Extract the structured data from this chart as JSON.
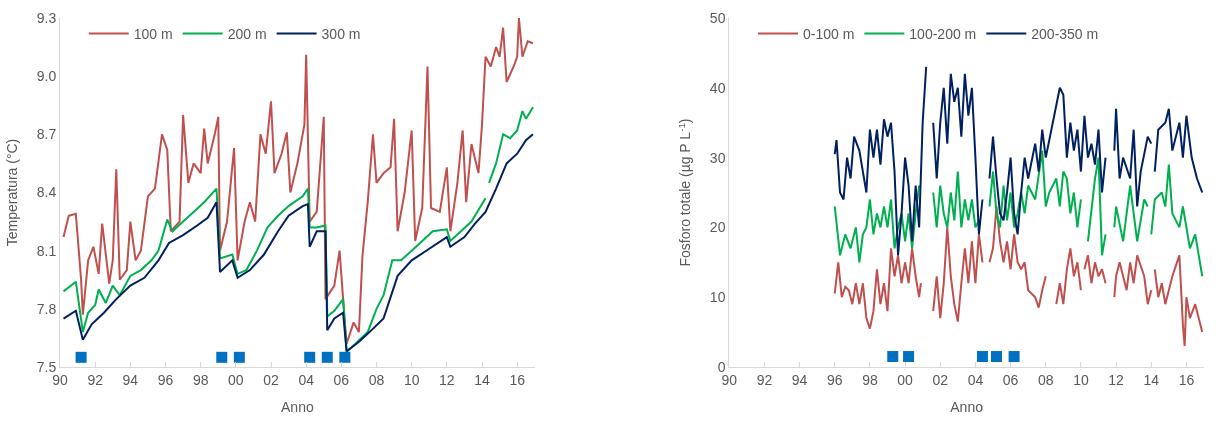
{
  "chart_data": [
    {
      "type": "line",
      "xlabel": "Anno",
      "ylabel": "Temperatura (°C)",
      "xlim": [
        1990,
        2017
      ],
      "ylim": [
        7.5,
        9.3
      ],
      "xticks": [
        {
          "value": 1990,
          "label": "90"
        },
        {
          "value": 1992,
          "label": "92"
        },
        {
          "value": 1994,
          "label": "94"
        },
        {
          "value": 1996,
          "label": "96"
        },
        {
          "value": 1998,
          "label": "98"
        },
        {
          "value": 2000,
          "label": "00"
        },
        {
          "value": 2002,
          "label": "02"
        },
        {
          "value": 2004,
          "label": "04"
        },
        {
          "value": 2006,
          "label": "06"
        },
        {
          "value": 2008,
          "label": "08"
        },
        {
          "value": 2010,
          "label": "10"
        },
        {
          "value": 2012,
          "label": "12"
        },
        {
          "value": 2014,
          "label": "14"
        },
        {
          "value": 2016,
          "label": "16"
        }
      ],
      "yticks": [
        7.5,
        7.8,
        8.1,
        8.4,
        8.7,
        {
          "value": 9.0,
          "label": "9.0"
        },
        9.3
      ],
      "legend": "top left",
      "marker": "none",
      "line_style": "solid",
      "series": [
        {
          "name": "100 m",
          "color": "#c0504d",
          "x": [
            1990.2,
            1990.5,
            1990.9,
            1991.2,
            1991.3,
            1991.6,
            1991.9,
            1992.2,
            1992.4,
            1992.8,
            1993.0,
            1993.2,
            1993.4,
            1993.8,
            1994.0,
            1994.3,
            1994.6,
            1995.0,
            1995.4,
            1995.8,
            1996.1,
            1996.3,
            1996.8,
            1997.0,
            1997.3,
            1997.6,
            1998.0,
            1998.2,
            1998.4,
            1998.8,
            1999.0,
            1999.1,
            1999.5,
            1999.9,
            2000.1,
            2000.5,
            2000.8,
            2001.1,
            2001.4,
            2001.7,
            2002.0,
            2002.2,
            2002.6,
            2002.9,
            2003.1,
            2003.5,
            2003.9,
            2004.0,
            2004.2,
            2004.6,
            2005.0,
            2005.1,
            2005.6,
            2005.9,
            2006.1,
            2006.3,
            2006.7,
            2007.0,
            2007.2,
            2007.5,
            2007.8,
            2008.0,
            2008.4,
            2008.8,
            2009.0,
            2009.2,
            2009.6,
            2010.0,
            2010.2,
            2010.6,
            2010.9,
            2011.1,
            2011.6,
            2012.0,
            2012.2,
            2012.6,
            2012.9,
            2013.1,
            2013.4,
            2013.8,
            2014.0,
            2014.2,
            2014.5,
            2014.8,
            2015.0,
            2015.2,
            2015.4,
            2015.8,
            2016.0,
            2016.1,
            2016.3,
            2016.6,
            2016.9
          ],
          "values": [
            8.17,
            8.28,
            8.29,
            7.95,
            7.77,
            8.05,
            8.12,
            7.98,
            8.24,
            7.93,
            8.05,
            8.52,
            7.95,
            8.0,
            8.25,
            8.05,
            8.1,
            8.38,
            8.42,
            8.7,
            8.62,
            8.2,
            8.25,
            8.8,
            8.45,
            8.55,
            8.5,
            8.73,
            8.55,
            8.7,
            8.79,
            8.1,
            8.25,
            8.63,
            8.05,
            8.25,
            8.35,
            8.25,
            8.7,
            8.6,
            8.87,
            8.5,
            8.6,
            8.71,
            8.4,
            8.55,
            8.75,
            9.11,
            8.25,
            8.3,
            8.79,
            7.85,
            7.92,
            8.1,
            7.85,
            7.62,
            7.73,
            7.68,
            8.07,
            8.35,
            8.7,
            8.45,
            8.5,
            8.53,
            8.78,
            8.2,
            8.4,
            8.72,
            8.15,
            8.32,
            9.05,
            8.32,
            8.3,
            8.53,
            8.2,
            8.45,
            8.72,
            8.35,
            8.65,
            8.5,
            8.75,
            9.1,
            9.05,
            9.15,
            9.1,
            9.25,
            8.97,
            9.05,
            9.1,
            9.3,
            9.1,
            9.18,
            9.17
          ]
        },
        {
          "name": "200 m",
          "color": "#00b050",
          "x": [
            1990.2,
            1990.9,
            1991.3,
            1991.6,
            1992.0,
            1992.2,
            1992.6,
            1993.0,
            1993.4,
            1994.0,
            1994.6,
            1995.2,
            1995.6,
            1996.1,
            1996.4,
            1997.0,
            1997.6,
            1998.2,
            1998.9,
            1999.1,
            1999.8,
            2000.1,
            2000.6,
            2001.2,
            2001.8,
            2002.4,
            2003.0,
            2003.8,
            2004.1,
            2004.2,
            2004.6,
            2005.1,
            2005.2,
            2005.6,
            2006.1,
            2006.3,
            2006.8,
            2007.5,
            2008.0,
            2008.4,
            2008.9,
            2009.4,
            2010.0,
            2010.6,
            2011.2,
            2012.0,
            2012.2,
            2012.8,
            2013.4,
            2014.2,
            2014.3,
            2014.4,
            2014.8,
            2015.2,
            2015.6,
            2016.0,
            2016.3,
            2016.5,
            2016.9
          ],
          "values": [
            7.89,
            7.94,
            7.68,
            7.78,
            7.82,
            7.9,
            7.83,
            7.92,
            7.87,
            7.97,
            8.0,
            8.05,
            8.1,
            8.26,
            8.2,
            8.25,
            8.3,
            8.35,
            8.42,
            8.06,
            8.08,
            7.98,
            8.0,
            8.1,
            8.22,
            8.28,
            8.33,
            8.38,
            8.42,
            8.22,
            8.22,
            8.23,
            7.76,
            7.79,
            7.85,
            7.58,
            7.62,
            7.68,
            7.8,
            7.87,
            8.05,
            8.05,
            8.1,
            8.15,
            8.2,
            8.21,
            8.15,
            8.2,
            8.25,
            8.37,
            null,
            8.45,
            8.55,
            8.7,
            8.68,
            8.72,
            8.82,
            8.78,
            8.84
          ]
        },
        {
          "name": "300 m",
          "color": "#002060",
          "x": [
            1990.2,
            1990.9,
            1991.3,
            1991.8,
            1992.5,
            1993.2,
            1994.0,
            1994.8,
            1995.6,
            1996.2,
            1997.0,
            1997.8,
            1998.4,
            1998.9,
            1999.1,
            1999.8,
            2000.1,
            2000.8,
            2001.6,
            2002.4,
            2003.0,
            2003.8,
            2004.1,
            2004.2,
            2004.6,
            2005.1,
            2005.2,
            2005.6,
            2006.1,
            2006.3,
            2007.0,
            2007.6,
            2008.4,
            2009.2,
            2010.0,
            2011.0,
            2012.0,
            2012.2,
            2013.0,
            2013.6,
            2014.2,
            2014.8,
            2015.4,
            2016.0,
            2016.5,
            2016.9
          ],
          "values": [
            7.75,
            7.79,
            7.64,
            7.72,
            7.78,
            7.85,
            7.92,
            7.96,
            8.05,
            8.14,
            8.18,
            8.23,
            8.27,
            8.35,
            7.99,
            8.05,
            7.96,
            8.0,
            8.08,
            8.2,
            8.28,
            8.33,
            8.34,
            8.12,
            8.2,
            8.2,
            7.69,
            7.75,
            7.78,
            7.58,
            7.63,
            7.68,
            7.75,
            7.97,
            8.05,
            8.11,
            8.17,
            8.12,
            8.17,
            8.24,
            8.3,
            8.42,
            8.55,
            8.6,
            8.67,
            8.7
          ]
        },
        {
          "type": "scatter",
          "marker": "square",
          "color": "#0070c0",
          "x": [
            1991.2,
            1999.2,
            2000.2,
            2004.2,
            2005.2,
            2006.2
          ],
          "values": [
            7.55,
            7.55,
            7.55,
            7.55,
            7.55,
            7.55
          ]
        }
      ]
    },
    {
      "type": "line",
      "xlabel": "Anno",
      "ylabel": "Fosforo totale (µg P L$^{-1}$)",
      "xlim": [
        1990,
        2017
      ],
      "ylim": [
        0,
        50
      ],
      "xticks": [
        {
          "value": 1990,
          "label": "90"
        },
        {
          "value": 1992,
          "label": "92"
        },
        {
          "value": 1994,
          "label": "94"
        },
        {
          "value": 1996,
          "label": "96"
        },
        {
          "value": 1998,
          "label": "98"
        },
        {
          "value": 2000,
          "label": "00"
        },
        {
          "value": 2002,
          "label": "02"
        },
        {
          "value": 2004,
          "label": "04"
        },
        {
          "value": 2006,
          "label": "06"
        },
        {
          "value": 2008,
          "label": "08"
        },
        {
          "value": 2010,
          "label": "10"
        },
        {
          "value": 2012,
          "label": "12"
        },
        {
          "value": 2014,
          "label": "14"
        },
        {
          "value": 2016,
          "label": "16"
        }
      ],
      "yticks": [
        0,
        10,
        20,
        30,
        40,
        50
      ],
      "legend": "top left",
      "marker": "none",
      "line_style": "solid",
      "series": [
        {
          "name": "0-100 m",
          "color": "#c0504d",
          "x": [
            1996.0,
            1996.2,
            1996.4,
            1996.6,
            1996.8,
            1997.0,
            1997.2,
            1997.4,
            1997.6,
            1997.8,
            1998.0,
            1998.2,
            1998.4,
            1998.6,
            1998.8,
            1999.0,
            1999.2,
            1999.4,
            1999.6,
            1999.8,
            2000.0,
            2000.2,
            2000.4,
            2000.6,
            2000.8,
            2000.9,
            2001.2,
            2001.6,
            2001.8,
            2002.0,
            2002.2,
            2002.4,
            2002.6,
            2002.8,
            2003.0,
            2003.2,
            2003.4,
            2003.6,
            2003.8,
            2004.0,
            2004.2,
            2004.4,
            2004.6,
            2004.8,
            2005.0,
            2005.2,
            2005.4,
            2005.6,
            2005.8,
            2006.0,
            2006.2,
            2006.4,
            2006.6,
            2006.8,
            2007.0,
            2007.4,
            2007.6,
            2007.8,
            2008.0,
            2008.3,
            2008.6,
            2008.8,
            2009.0,
            2009.2,
            2009.4,
            2009.6,
            2009.8,
            2010.0,
            2010.1,
            2010.2,
            2010.4,
            2010.6,
            2010.8,
            2011.0,
            2011.2,
            2011.4,
            2011.6,
            2011.9,
            2012.0,
            2012.2,
            2012.6,
            2012.8,
            2013.0,
            2013.2,
            2013.6,
            2013.8,
            2014.0,
            2014.1,
            2014.2,
            2014.4,
            2014.6,
            2014.8,
            2015.0,
            2015.2,
            2015.6,
            2015.8,
            2015.9,
            2016.0,
            2016.2,
            2016.5,
            2016.9
          ],
          "values": [
            10.5,
            15,
            10,
            11.5,
            11,
            9,
            12,
            9,
            12,
            7,
            5.5,
            8,
            14,
            9,
            12,
            8,
            17,
            13,
            16,
            12,
            15,
            12,
            17,
            13,
            10,
            12,
            null,
            8,
            13,
            7,
            12,
            20,
            13,
            9,
            6.5,
            12,
            17,
            12,
            18,
            12,
            19,
            15,
            null,
            15,
            17,
            23,
            18,
            15,
            18,
            14,
            19,
            15,
            14,
            15,
            11,
            10,
            8.5,
            11,
            13,
            null,
            9,
            12,
            9,
            14,
            17,
            13,
            15,
            11,
            null,
            14,
            16,
            12,
            15,
            13,
            14,
            12,
            null,
            10,
            13,
            15,
            11,
            15,
            12,
            16,
            13,
            9,
            11,
            null,
            14,
            10,
            12,
            9,
            11,
            13,
            16,
            6,
            3,
            10,
            7,
            9,
            5
          ]
        },
        {
          "name": "100-200 m",
          "color": "#00b050",
          "x": [
            1996.0,
            1996.3,
            1996.6,
            1996.9,
            1997.2,
            1997.4,
            1997.6,
            1997.8,
            1998.0,
            1998.2,
            1998.4,
            1998.6,
            1998.8,
            1999.0,
            1999.2,
            1999.4,
            1999.6,
            1999.8,
            2000.0,
            2000.2,
            2000.4,
            2000.6,
            2000.8,
            2001.2,
            2001.6,
            2001.8,
            2002.0,
            2002.2,
            2002.4,
            2002.6,
            2002.8,
            2003.0,
            2003.2,
            2003.4,
            2003.6,
            2003.8,
            2004.0,
            2004.2,
            2004.5,
            2004.8,
            2005.0,
            2005.2,
            2005.4,
            2005.6,
            2005.8,
            2006.0,
            2006.2,
            2006.4,
            2006.6,
            2006.8,
            2007.0,
            2007.4,
            2007.8,
            2008.0,
            2008.2,
            2008.6,
            2008.8,
            2009.0,
            2009.2,
            2009.4,
            2009.6,
            2009.8,
            2010.0,
            2010.2,
            2010.4,
            2010.8,
            2011.0,
            2011.2,
            2011.4,
            2011.6,
            2011.9,
            2012.0,
            2012.4,
            2012.8,
            2013.0,
            2013.2,
            2013.6,
            2013.8,
            2013.9,
            2014.0,
            2014.2,
            2014.6,
            2014.8,
            2015.0,
            2015.2,
            2015.6,
            2015.8,
            2016.2,
            2016.5,
            2016.9
          ],
          "values": [
            23,
            16,
            19,
            17,
            20,
            15,
            19,
            20,
            24,
            19,
            22,
            20,
            23,
            20,
            24,
            17,
            20,
            22,
            18,
            22,
            17,
            22,
            26,
            null,
            25,
            20,
            26,
            22,
            20,
            25,
            21,
            28,
            20,
            24,
            21,
            24,
            20,
            21,
            null,
            23,
            28,
            22,
            20,
            26,
            21,
            25,
            20,
            22,
            25,
            22,
            26,
            24,
            31,
            23,
            25,
            27,
            23,
            28,
            27,
            22,
            25,
            20,
            24,
            null,
            18,
            27,
            30,
            16,
            19,
            null,
            20,
            23,
            18,
            26,
            22,
            18,
            24,
            23,
            null,
            19,
            24,
            25,
            23,
            29,
            22,
            20,
            23,
            17,
            19,
            13
          ]
        },
        {
          "name": "200-350 m",
          "color": "#002060",
          "x": [
            1996.0,
            1996.1,
            1996.3,
            1996.5,
            1996.7,
            1996.9,
            1997.1,
            1997.4,
            1997.6,
            1997.8,
            1998.0,
            1998.2,
            1998.4,
            1998.6,
            1998.8,
            1999.0,
            1999.2,
            1999.4,
            1999.6,
            1999.8,
            2000.0,
            2000.2,
            2000.4,
            2000.6,
            2000.8,
            2001.0,
            2001.2,
            2001.4,
            2001.6,
            2001.8,
            2002.0,
            2002.2,
            2002.4,
            2002.6,
            2002.8,
            2003.0,
            2003.2,
            2003.4,
            2003.6,
            2003.8,
            2004.0,
            2004.2,
            2004.4,
            2004.6,
            2004.8,
            2005.0,
            2005.2,
            2005.4,
            2005.6,
            2005.8,
            2006.0,
            2006.2,
            2006.4,
            2006.6,
            2006.8,
            2007.0,
            2007.4,
            2007.6,
            2007.8,
            2008.0,
            2008.4,
            2008.8,
            2009.0,
            2009.2,
            2009.4,
            2009.6,
            2009.8,
            2010.0,
            2010.2,
            2010.4,
            2010.6,
            2010.8,
            2011.0,
            2011.2,
            2011.4,
            2011.6,
            2011.9,
            2012.0,
            2012.2,
            2012.4,
            2012.8,
            2013.0,
            2013.2,
            2013.4,
            2013.8,
            2014.0,
            2014.1,
            2014.2,
            2014.4,
            2014.8,
            2015.0,
            2015.2,
            2015.6,
            2015.8,
            2016.0,
            2016.3,
            2016.6,
            2016.9
          ],
          "values": [
            30.5,
            32.5,
            25,
            24,
            30,
            27,
            33,
            31,
            28,
            25,
            34,
            30,
            34,
            29,
            35.5,
            33,
            35,
            28,
            16,
            22,
            30,
            26,
            18,
            26,
            20,
            35,
            43,
            null,
            35,
            27,
            35,
            40,
            32,
            42,
            38,
            40,
            33,
            42,
            36,
            40,
            30,
            19,
            24,
            null,
            27,
            33,
            27,
            22,
            21,
            25,
            30,
            22,
            19,
            25,
            30,
            27,
            32,
            28,
            34,
            30,
            35,
            40,
            39,
            30,
            35,
            31,
            34,
            28,
            36,
            30,
            32,
            29,
            34,
            25,
            30,
            null,
            31,
            37,
            27,
            30,
            27,
            34,
            23,
            28,
            33,
            32,
            null,
            28,
            34,
            35,
            37,
            31,
            35,
            30,
            36,
            30,
            27,
            25
          ]
        },
        {
          "type": "scatter",
          "marker": "square",
          "color": "#0070c0",
          "x": [
            1999.3,
            2000.2,
            2004.4,
            2005.2,
            2006.2
          ],
          "values": [
            1.5,
            1.5,
            1.5,
            1.5,
            1.5
          ]
        }
      ]
    }
  ]
}
